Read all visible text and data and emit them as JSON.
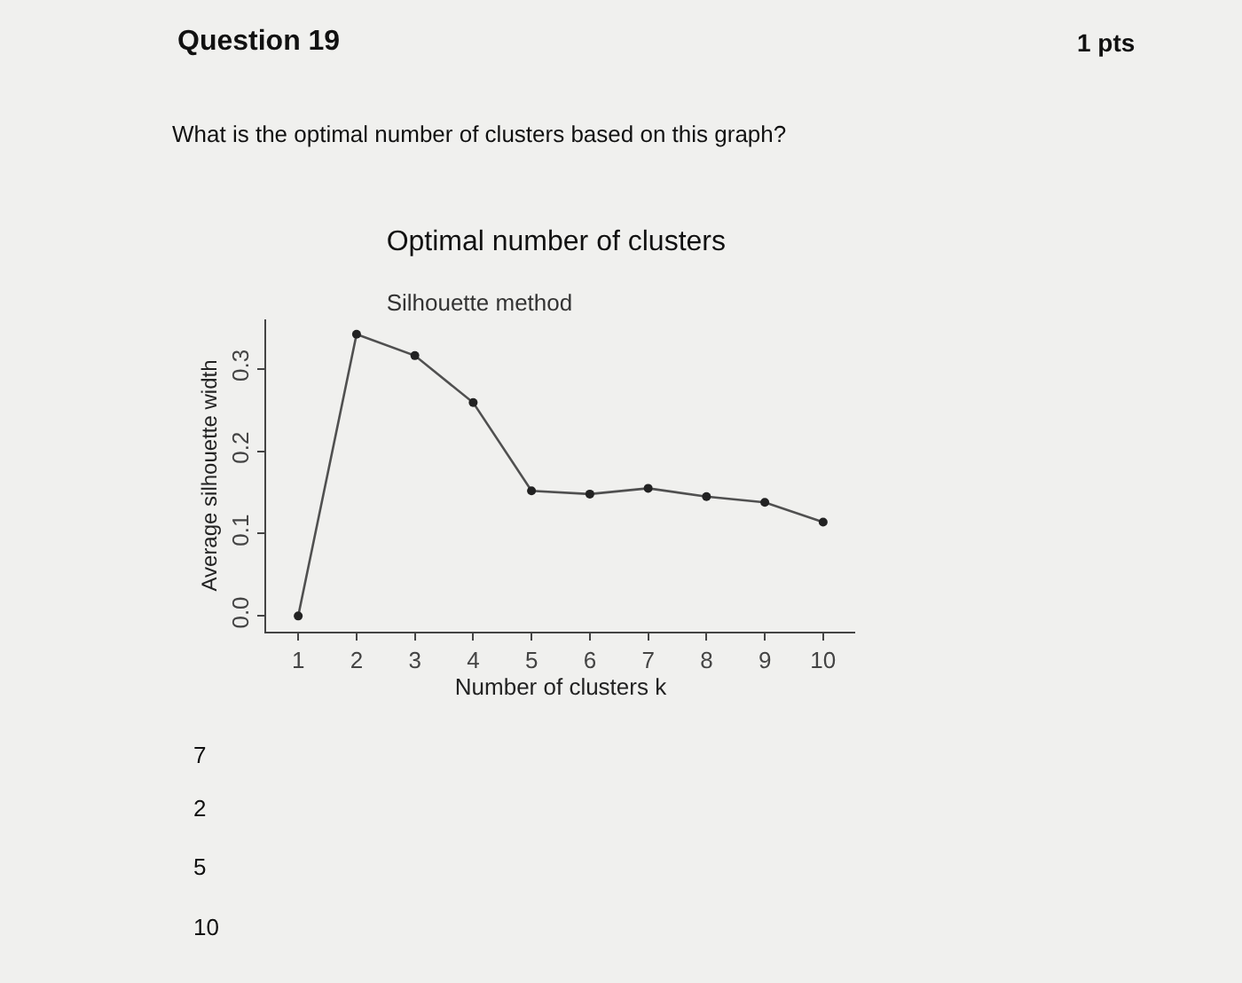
{
  "chart_data": {
    "type": "line",
    "title": "Optimal number of clusters",
    "subtitle": "Silhouette method",
    "xlabel": "Number of clusters k",
    "ylabel": "Average silhouette width",
    "x": [
      1,
      2,
      3,
      4,
      5,
      6,
      7,
      8,
      9,
      10
    ],
    "series": [
      {
        "color": "#505050",
        "values": [
          0.0,
          0.342,
          0.316,
          0.259,
          0.152,
          0.148,
          0.155,
          0.145,
          0.138,
          0.114
        ]
      }
    ],
    "xlim": [
      0.45,
      10.55
    ],
    "xticks": [
      1,
      2,
      3,
      4,
      5,
      6,
      7,
      8,
      9,
      10
    ],
    "ylim": [
      -0.019,
      0.36
    ],
    "yticks": [
      {
        "value": 0,
        "label": "0.0"
      },
      0.1,
      0.2,
      0.3
    ],
    "marker": "circle",
    "line_style": "solid",
    "annotations": [
      "Question 19",
      "1 pts",
      "What is the optimal number of clusters based on this graph?",
      "7",
      "2",
      "5",
      "10"
    ]
  }
}
